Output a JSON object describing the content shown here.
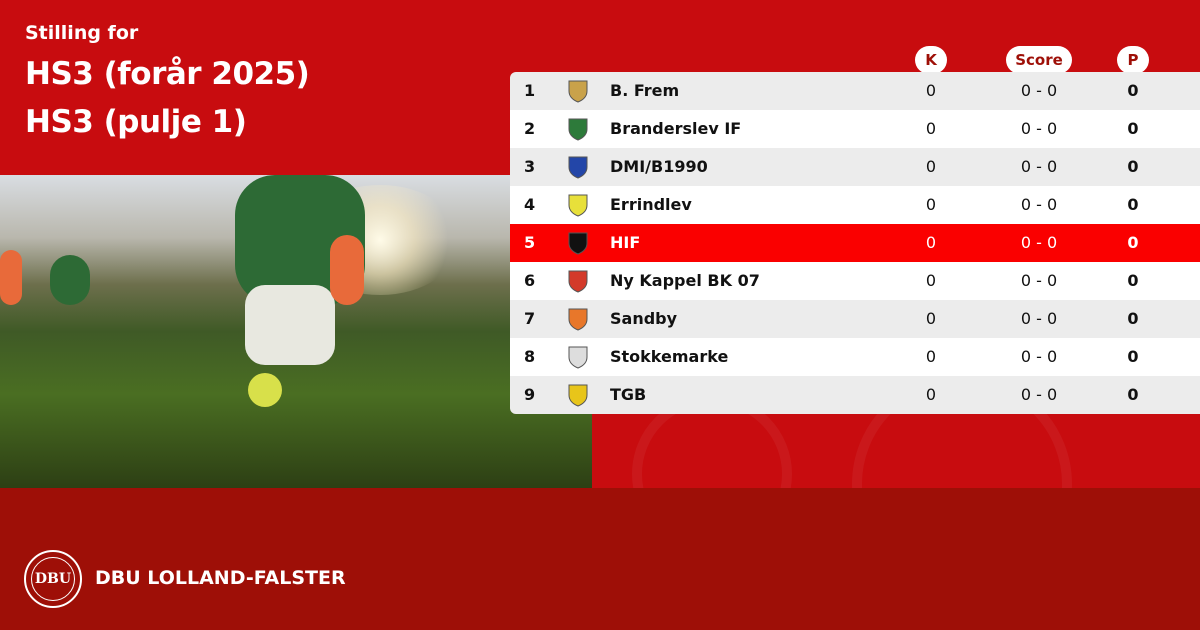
{
  "header": {
    "subtitle": "Stilling for",
    "title_line1": "HS3 (forår 2025)",
    "title_line2": "HS3 (pulje 1)"
  },
  "columns": {
    "k": "K",
    "score": "Score",
    "p": "P"
  },
  "colors": {
    "primary_red": "#c80c0f",
    "footer_red": "#9e0f07",
    "highlight_row": "#fa0000"
  },
  "rows": [
    {
      "rank": "1",
      "team": "B. Frem",
      "k": "0",
      "score": "0 - 0",
      "p": "0",
      "logo_color": "#c9a24a",
      "highlight": false
    },
    {
      "rank": "2",
      "team": "Branderslev IF",
      "k": "0",
      "score": "0 - 0",
      "p": "0",
      "logo_color": "#2d7a3a",
      "highlight": false
    },
    {
      "rank": "3",
      "team": "DMI/B1990",
      "k": "0",
      "score": "0 - 0",
      "p": "0",
      "logo_color": "#2346a8",
      "highlight": false
    },
    {
      "rank": "4",
      "team": "Errindlev",
      "k": "0",
      "score": "0 - 0",
      "p": "0",
      "logo_color": "#e8e03a",
      "highlight": false
    },
    {
      "rank": "5",
      "team": "HIF",
      "k": "0",
      "score": "0 - 0",
      "p": "0",
      "logo_color": "#111111",
      "highlight": true
    },
    {
      "rank": "6",
      "team": "Ny Kappel BK 07",
      "k": "0",
      "score": "0 - 0",
      "p": "0",
      "logo_color": "#d33a2a",
      "highlight": false
    },
    {
      "rank": "7",
      "team": "Sandby",
      "k": "0",
      "score": "0 - 0",
      "p": "0",
      "logo_color": "#e8772a",
      "highlight": false
    },
    {
      "rank": "8",
      "team": "Stokkemarke",
      "k": "0",
      "score": "0 - 0",
      "p": "0",
      "logo_color": "#dddddd",
      "highlight": false
    },
    {
      "rank": "9",
      "team": "TGB",
      "k": "0",
      "score": "0 - 0",
      "p": "0",
      "logo_color": "#e8c51a",
      "highlight": false
    }
  ],
  "footer": {
    "logo_text": "DBU",
    "brand": "DBU LOLLAND-FALSTER"
  }
}
